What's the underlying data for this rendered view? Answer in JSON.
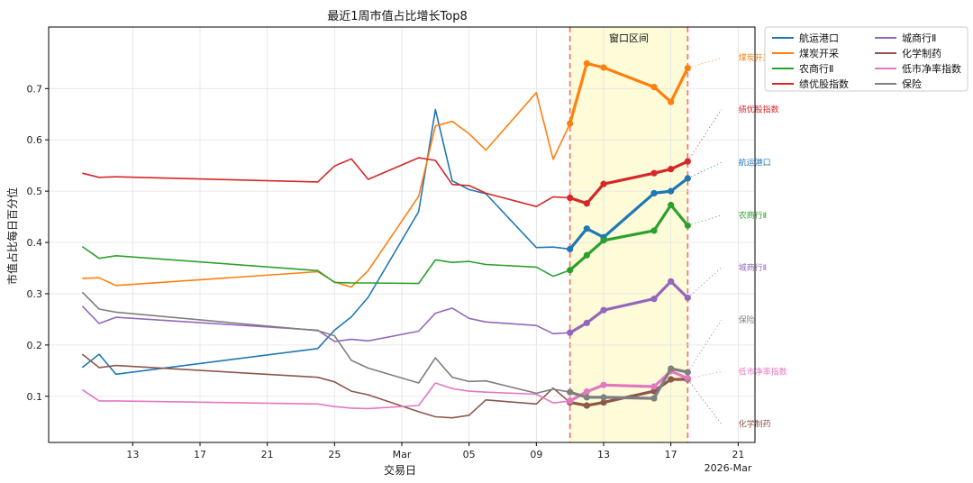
{
  "chart_data": {
    "type": "line",
    "title": "最近1周市值占比增长Top8",
    "xlabel": "交易日",
    "ylabel": "市值占比每日百分位",
    "x_offset_label": "2026-Mar",
    "xlim": [
      "2026-02-08",
      "2026-03-22"
    ],
    "ylim": [
      0.01,
      0.82
    ],
    "x_ticks": [
      {
        "date": "2026-02-13",
        "label": "13"
      },
      {
        "date": "2026-02-17",
        "label": "17"
      },
      {
        "date": "2026-02-21",
        "label": "21"
      },
      {
        "date": "2026-02-25",
        "label": "25"
      },
      {
        "date": "2026-03-01",
        "label": "Mar"
      },
      {
        "date": "2026-03-05",
        "label": "05"
      },
      {
        "date": "2026-03-09",
        "label": "09"
      },
      {
        "date": "2026-03-13",
        "label": "13"
      },
      {
        "date": "2026-03-17",
        "label": "17"
      },
      {
        "date": "2026-03-21",
        "label": "21"
      }
    ],
    "y_ticks": [
      0.1,
      0.2,
      0.3,
      0.4,
      0.5,
      0.6,
      0.7
    ],
    "y_tick_labels": [
      "0.1",
      "0.2",
      "0.3",
      "0.4",
      "0.5",
      "0.6",
      "0.7"
    ],
    "grid": true,
    "legend_position": "outside-top-right",
    "window": {
      "label": "窗口区间",
      "start": "2026-03-11",
      "end": "2026-03-18",
      "fill_color": "#fefbd8",
      "line_color": "#f07d70"
    },
    "dates": [
      "2026-02-10",
      "2026-02-11",
      "2026-02-12",
      "2026-02-24",
      "2026-02-25",
      "2026-02-26",
      "2026-02-27",
      "2026-03-02",
      "2026-03-03",
      "2026-03-04",
      "2026-03-05",
      "2026-03-06",
      "2026-03-09",
      "2026-03-10",
      "2026-03-11",
      "2026-03-12",
      "2026-03-13",
      "2026-03-16",
      "2026-03-17",
      "2026-03-18"
    ],
    "series": [
      {
        "name": "航运港口",
        "color": "#1f77b4",
        "values": [
          0.156,
          0.182,
          0.143,
          0.193,
          0.229,
          0.255,
          0.293,
          0.46,
          0.659,
          0.52,
          0.503,
          0.495,
          0.39,
          0.391,
          0.387,
          0.427,
          0.41,
          0.496,
          0.5,
          0.525
        ]
      },
      {
        "name": "煤炭开采",
        "color": "#ff7f0e",
        "values": [
          0.33,
          0.331,
          0.316,
          0.343,
          0.323,
          0.313,
          0.345,
          0.49,
          0.627,
          0.636,
          0.612,
          0.58,
          0.692,
          0.562,
          0.632,
          0.749,
          0.741,
          0.703,
          0.674,
          0.74
        ]
      },
      {
        "name": "农商行Ⅱ",
        "color": "#2ca02c",
        "values": [
          0.392,
          0.369,
          0.374,
          0.345,
          0.322,
          0.321,
          0.321,
          0.32,
          0.366,
          0.361,
          0.363,
          0.357,
          0.352,
          0.334,
          0.346,
          0.375,
          0.404,
          0.423,
          0.473,
          0.433
        ]
      },
      {
        "name": "绩优股指数",
        "color": "#d62728",
        "values": [
          0.535,
          0.527,
          0.528,
          0.518,
          0.549,
          0.563,
          0.523,
          0.565,
          0.56,
          0.513,
          0.511,
          0.496,
          0.47,
          0.489,
          0.487,
          0.476,
          0.514,
          0.535,
          0.543,
          0.558
        ]
      },
      {
        "name": "城商行Ⅱ",
        "color": "#9467bd",
        "values": [
          0.276,
          0.242,
          0.254,
          0.229,
          0.207,
          0.211,
          0.208,
          0.227,
          0.262,
          0.272,
          0.252,
          0.245,
          0.238,
          0.222,
          0.224,
          0.243,
          0.268,
          0.29,
          0.324,
          0.292
        ]
      },
      {
        "name": "化学制药",
        "color": "#8c564b",
        "values": [
          0.182,
          0.156,
          0.16,
          0.137,
          0.128,
          0.11,
          0.103,
          0.07,
          0.06,
          0.058,
          0.063,
          0.093,
          0.085,
          0.116,
          0.088,
          0.082,
          0.088,
          0.11,
          0.133,
          0.133
        ]
      },
      {
        "name": "低市净率指数",
        "color": "#e377c2",
        "values": [
          0.113,
          0.091,
          0.091,
          0.085,
          0.08,
          0.077,
          0.076,
          0.082,
          0.126,
          0.115,
          0.11,
          0.108,
          0.104,
          0.087,
          0.091,
          0.109,
          0.122,
          0.119,
          0.149,
          0.135
        ]
      },
      {
        "name": "保险",
        "color": "#7f7f7f",
        "values": [
          0.303,
          0.27,
          0.264,
          0.228,
          0.218,
          0.17,
          0.155,
          0.126,
          0.175,
          0.137,
          0.129,
          0.13,
          0.106,
          0.114,
          0.108,
          0.098,
          0.098,
          0.096,
          0.154,
          0.147
        ]
      }
    ],
    "annotations": [
      {
        "text": "煤炭开采",
        "series": "煤炭开采",
        "y": 0.76
      },
      {
        "text": "绩优股指数",
        "series": "绩优股指数",
        "y": 0.659
      },
      {
        "text": "航运港口",
        "series": "航运港口",
        "y": 0.556
      },
      {
        "text": "农商行Ⅱ",
        "series": "农商行Ⅱ",
        "y": 0.453
      },
      {
        "text": "城商行Ⅱ",
        "series": "城商行Ⅱ",
        "y": 0.351
      },
      {
        "text": "保险",
        "series": "保险",
        "y": 0.249
      },
      {
        "text": "低市净率指数",
        "series": "低市净率指数",
        "y": 0.148
      },
      {
        "text": "化学制药",
        "series": "化学制药",
        "y": 0.046
      }
    ]
  }
}
